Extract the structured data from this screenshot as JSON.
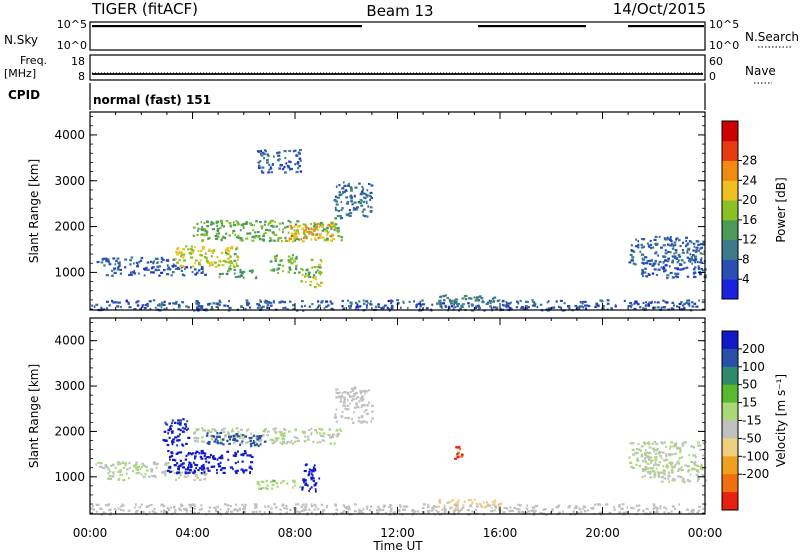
{
  "header": {
    "left": "TIGER (fitACF)",
    "center": "Beam 13",
    "right": "14/Oct/2015"
  },
  "colors": {
    "axis": "#000000",
    "background": "#ffffff",
    "gap": "#ffffff"
  },
  "panels": {
    "nsky": {
      "label": "N.Sky",
      "ticks": [
        "10^5",
        "10^0"
      ],
      "right_ticks": [
        "10^5",
        "10^0"
      ],
      "right_label": "N.Search"
    },
    "freq": {
      "label_line1": "Freq.",
      "label_line2": "[MHz]",
      "ticks": [
        "18",
        "8"
      ],
      "right_ticks": [
        "60",
        "0"
      ],
      "right_label": "Nave"
    },
    "cpid": {
      "label": "CPID",
      "text": "normal (fast) 151"
    }
  },
  "chart_data": [
    {
      "type": "heatmap",
      "name": "power",
      "ylabel": "Slant Range [km]",
      "ylim": [
        180,
        4500
      ],
      "yticks": [
        "1000",
        "2000",
        "3000",
        "4000"
      ],
      "xlim": [
        0,
        24
      ],
      "colorbar": {
        "label": "Power [dB]",
        "ticks": [
          "4",
          "8",
          "12",
          "16",
          "20",
          "24",
          "28"
        ],
        "colors": [
          "#1a22e0",
          "#2a4fb4",
          "#3a7a8a",
          "#4a9a5a",
          "#8ac024",
          "#f0c020",
          "#f08a10",
          "#e83a10",
          "#cc0000"
        ],
        "range": [
          0,
          32
        ]
      },
      "features": [
        {
          "t0": 0.0,
          "t1": 24.0,
          "r0": 190,
          "r1": 420,
          "value": 6
        },
        {
          "t0": 0.2,
          "t1": 3.3,
          "r0": 1150,
          "r1": 1350,
          "value": 7
        },
        {
          "t0": 0.6,
          "t1": 4.5,
          "r0": 950,
          "r1": 1150,
          "value": 6
        },
        {
          "t0": 3.3,
          "t1": 5.8,
          "r0": 1100,
          "r1": 1600,
          "value": 17
        },
        {
          "t0": 5.0,
          "t1": 6.5,
          "r0": 900,
          "r1": 1100,
          "value": 12
        },
        {
          "t0": 4.0,
          "t1": 9.8,
          "r0": 1700,
          "r1": 2150,
          "value": 14
        },
        {
          "t0": 7.7,
          "t1": 9.5,
          "r0": 1700,
          "r1": 2100,
          "value": 21
        },
        {
          "t0": 7.0,
          "t1": 8.2,
          "r0": 1000,
          "r1": 1400,
          "value": 14
        },
        {
          "t0": 8.2,
          "t1": 9.0,
          "r0": 700,
          "r1": 1300,
          "value": 16
        },
        {
          "t0": 9.5,
          "t1": 11.0,
          "r0": 2200,
          "r1": 3000,
          "value": 8
        },
        {
          "t0": 13.5,
          "t1": 16.0,
          "r0": 330,
          "r1": 520,
          "value": 10
        },
        {
          "t0": 21.0,
          "t1": 24.0,
          "r0": 1200,
          "r1": 1800,
          "value": 7
        },
        {
          "t0": 21.5,
          "t1": 24.0,
          "r0": 900,
          "r1": 1300,
          "value": 6
        },
        {
          "t0": 6.5,
          "t1": 8.2,
          "r0": 3200,
          "r1": 3700,
          "value": 6
        }
      ]
    },
    {
      "type": "heatmap",
      "name": "velocity",
      "ylabel": "Slant Range [km]",
      "ylim": [
        180,
        4500
      ],
      "yticks": [
        "1000",
        "2000",
        "3000",
        "4000"
      ],
      "xlim": [
        0,
        24
      ],
      "xticks": [
        "00:00",
        "04:00",
        "08:00",
        "12:00",
        "16:00",
        "20:00",
        "00:00"
      ],
      "xlabel": "Time UT",
      "colorbar": {
        "label": "Velocity [m s⁻¹]",
        "ticks": [
          "200",
          "100",
          "50",
          "15",
          "-15",
          "-50",
          "-100",
          "-200"
        ],
        "colors": [
          "#1018c8",
          "#2850a8",
          "#2e8a6a",
          "#58b830",
          "#a8d878",
          "#c0c0c0",
          "#f0d080",
          "#f0a020",
          "#f07010",
          "#e82010"
        ],
        "range": [
          -250,
          250
        ]
      },
      "features": [
        {
          "t0": 0.0,
          "t1": 24.0,
          "r0": 190,
          "r1": 420,
          "value": -20
        },
        {
          "t0": 0.2,
          "t1": 3.3,
          "r0": 1150,
          "r1": 1350,
          "value": 0
        },
        {
          "t0": 0.6,
          "t1": 4.5,
          "r0": 950,
          "r1": 1150,
          "value": 0
        },
        {
          "t0": 3.0,
          "t1": 6.3,
          "r0": 1100,
          "r1": 1600,
          "value": 220
        },
        {
          "t0": 2.8,
          "t1": 3.8,
          "r0": 1700,
          "r1": 2300,
          "value": 210
        },
        {
          "t0": 4.0,
          "t1": 9.8,
          "r0": 1750,
          "r1": 2100,
          "value": 0
        },
        {
          "t0": 4.5,
          "t1": 6.8,
          "r0": 1700,
          "r1": 2000,
          "value": 180
        },
        {
          "t0": 8.2,
          "t1": 9.0,
          "r0": 700,
          "r1": 1300,
          "value": 230
        },
        {
          "t0": 6.5,
          "t1": 8.2,
          "r0": 750,
          "r1": 950,
          "value": 40
        },
        {
          "t0": 14.2,
          "t1": 14.5,
          "r0": 1400,
          "r1": 1700,
          "value": -210
        },
        {
          "t0": 13.5,
          "t1": 16.0,
          "r0": 330,
          "r1": 520,
          "value": -60
        },
        {
          "t0": 21.0,
          "t1": 24.0,
          "r0": 1200,
          "r1": 1800,
          "value": 0
        },
        {
          "t0": 21.5,
          "t1": 24.0,
          "r0": 900,
          "r1": 1300,
          "value": 0
        },
        {
          "t0": 9.5,
          "t1": 11.0,
          "r0": 2200,
          "r1": 3000,
          "value": -20
        }
      ]
    }
  ]
}
